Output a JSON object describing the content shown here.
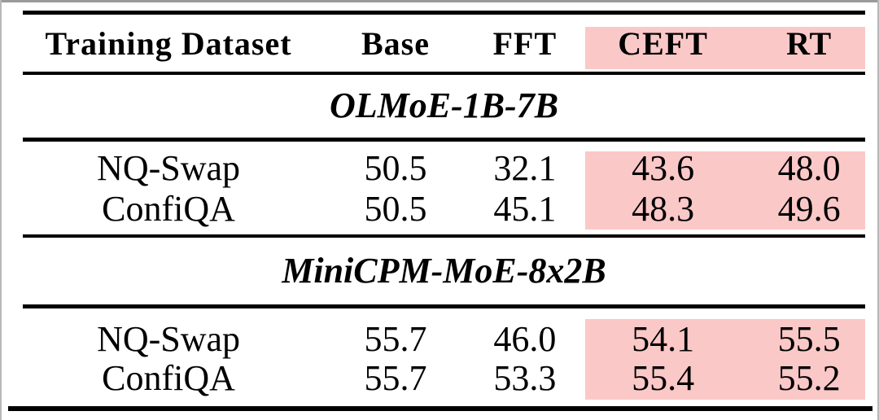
{
  "page": {
    "background_color": "#ffffff",
    "edge_color": "#9a9a9a"
  },
  "table": {
    "highlight_color": "#fbc8c8",
    "rule_color": "#000000",
    "columns": [
      "Training Dataset",
      "Base",
      "FFT",
      "CEFT",
      "RT"
    ],
    "highlighted_columns": [
      "CEFT",
      "RT"
    ],
    "sections": [
      {
        "title": "OLMoE-1B-7B",
        "rows": [
          {
            "dataset": "NQ-Swap",
            "values": [
              "50.5",
              "32.1",
              "43.6",
              "48.0"
            ]
          },
          {
            "dataset": "ConfiQA",
            "values": [
              "50.5",
              "45.1",
              "48.3",
              "49.6"
            ]
          }
        ]
      },
      {
        "title": "MiniCPM-MoE-8x2B",
        "rows": [
          {
            "dataset": "NQ-Swap",
            "values": [
              "55.7",
              "46.0",
              "54.1",
              "55.5"
            ]
          },
          {
            "dataset": "ConfiQA",
            "values": [
              "55.7",
              "53.3",
              "55.4",
              "55.2"
            ]
          }
        ]
      }
    ]
  }
}
